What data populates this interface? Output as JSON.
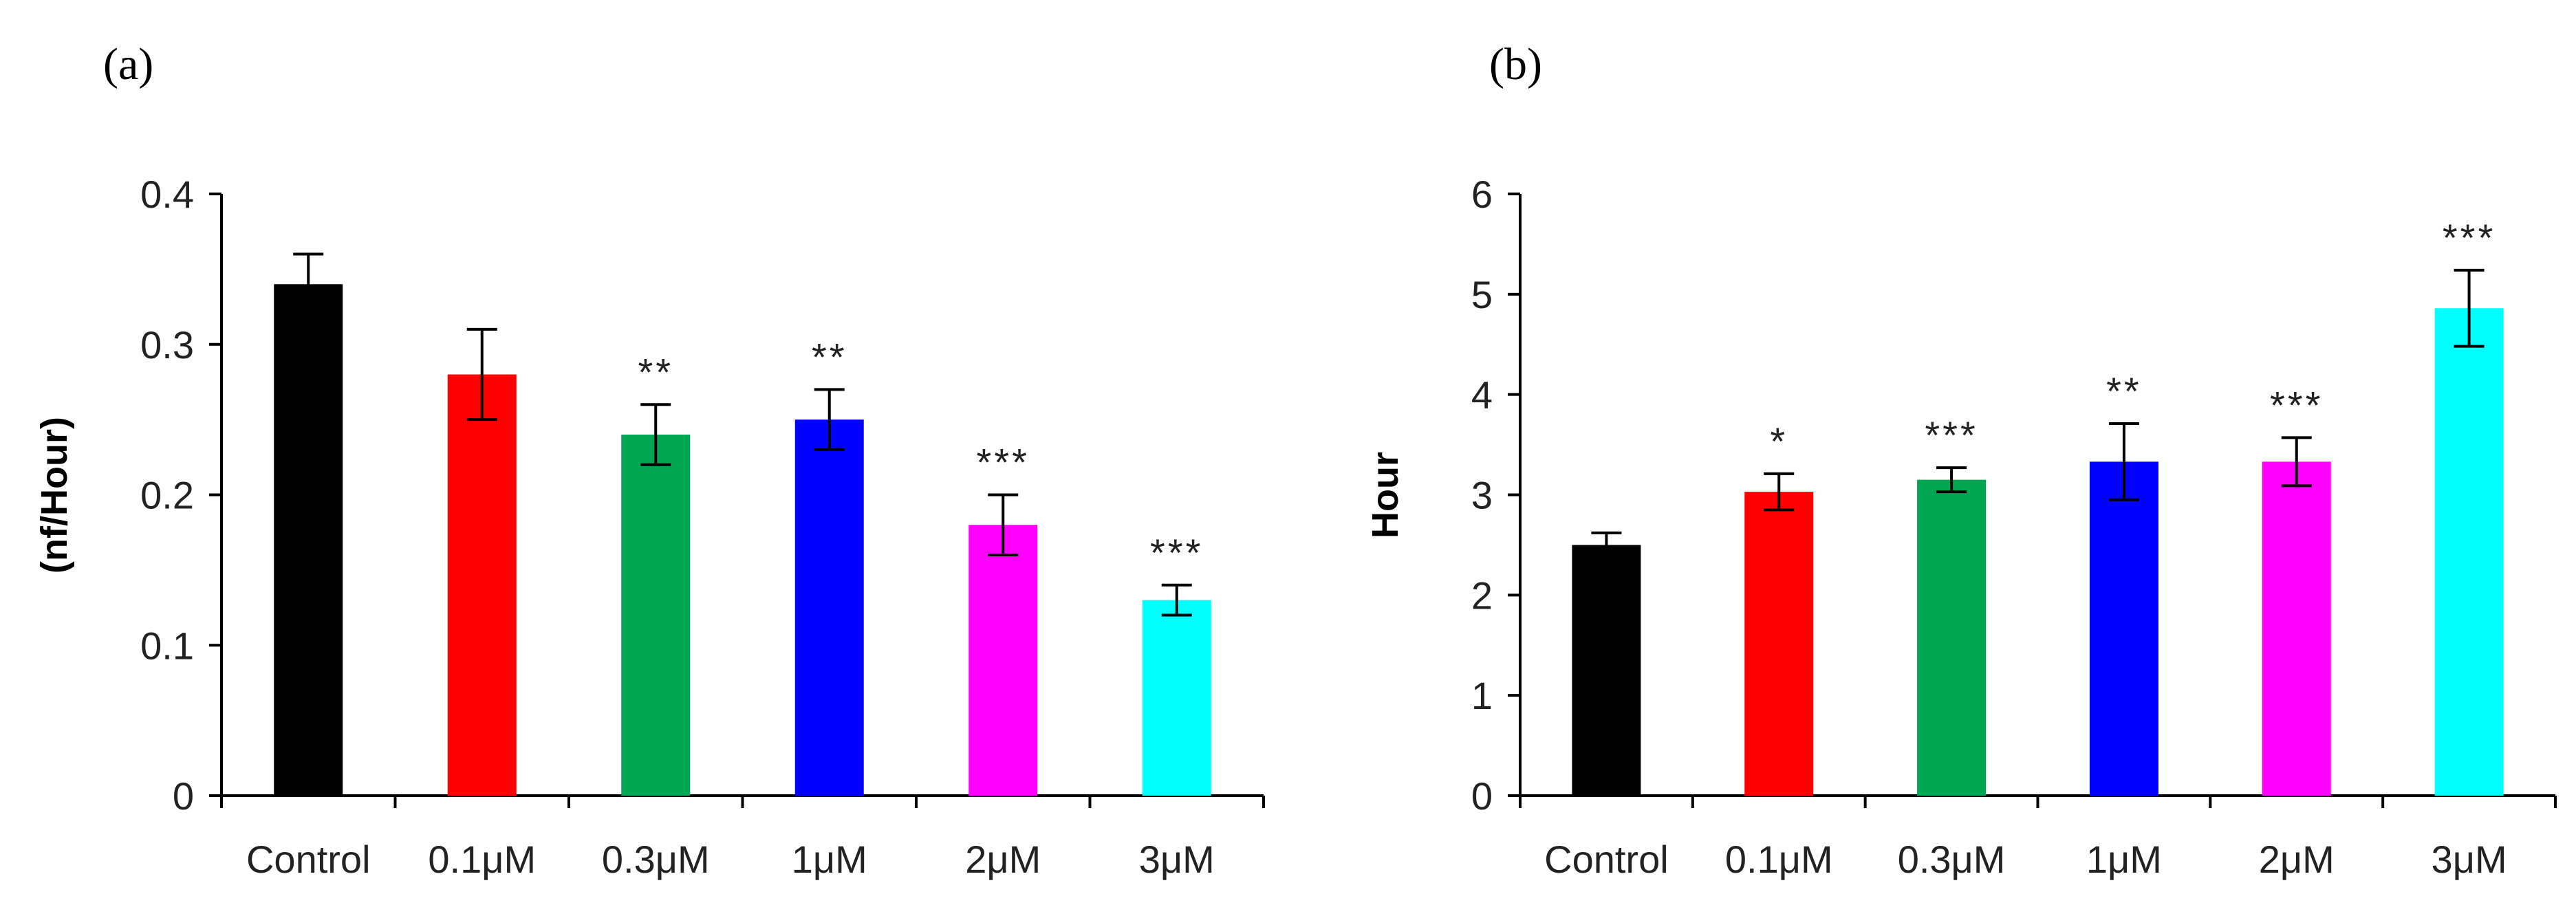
{
  "chart_data": [
    {
      "panel": "(a)",
      "type": "bar",
      "title": "",
      "xlabel": "",
      "ylabel": "(nf/Hour)",
      "ylim": [
        0,
        0.4
      ],
      "yticks": [
        0,
        0.1,
        0.2,
        0.3,
        0.4
      ],
      "ytick_labels": [
        "0",
        "0.1",
        "0.2",
        "0.3",
        "0.4"
      ],
      "categories": [
        "Control",
        "0.1μM",
        "0.3μM",
        "1μM",
        "2μM",
        "3μM"
      ],
      "values": [
        0.34,
        0.28,
        0.24,
        0.25,
        0.18,
        0.13
      ],
      "errors": [
        0.02,
        0.03,
        0.02,
        0.02,
        0.02,
        0.01
      ],
      "significance": [
        "",
        "",
        "**",
        "**",
        "***",
        "***"
      ],
      "colors": [
        "#000000",
        "#ff0000",
        "#00a651",
        "#0000ff",
        "#ff00ff",
        "#00ffff"
      ]
    },
    {
      "panel": "(b)",
      "type": "bar",
      "title": "",
      "xlabel": "",
      "ylabel": "Hour",
      "ylim": [
        0,
        6
      ],
      "yticks": [
        0,
        1,
        2,
        3,
        4,
        5,
        6
      ],
      "ytick_labels": [
        "0",
        "1",
        "2",
        "3",
        "4",
        "5",
        "6"
      ],
      "categories": [
        "Control",
        "0.1μM",
        "0.3μM",
        "1μM",
        "2μM",
        "3μM"
      ],
      "values": [
        2.5,
        3.03,
        3.15,
        3.33,
        3.33,
        4.86
      ],
      "errors": [
        0.12,
        0.18,
        0.12,
        0.38,
        0.24,
        0.38
      ],
      "significance": [
        "",
        "*",
        "***",
        "**",
        "***",
        "***"
      ],
      "colors": [
        "#000000",
        "#ff0000",
        "#00a651",
        "#0000ff",
        "#ff00ff",
        "#00ffff"
      ]
    }
  ]
}
